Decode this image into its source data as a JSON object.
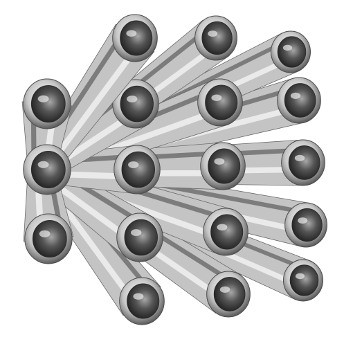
{
  "image": {
    "subject": "bundle-of-steel-tubes",
    "background_color": "#ffffff",
    "colors": {
      "steel_light": "#f2f2f2",
      "steel_mid": "#b9b9b9",
      "steel_dark": "#4a4a4a",
      "bore_dark": "#2b2b2b",
      "rim_light": "#e6e6e6"
    }
  }
}
